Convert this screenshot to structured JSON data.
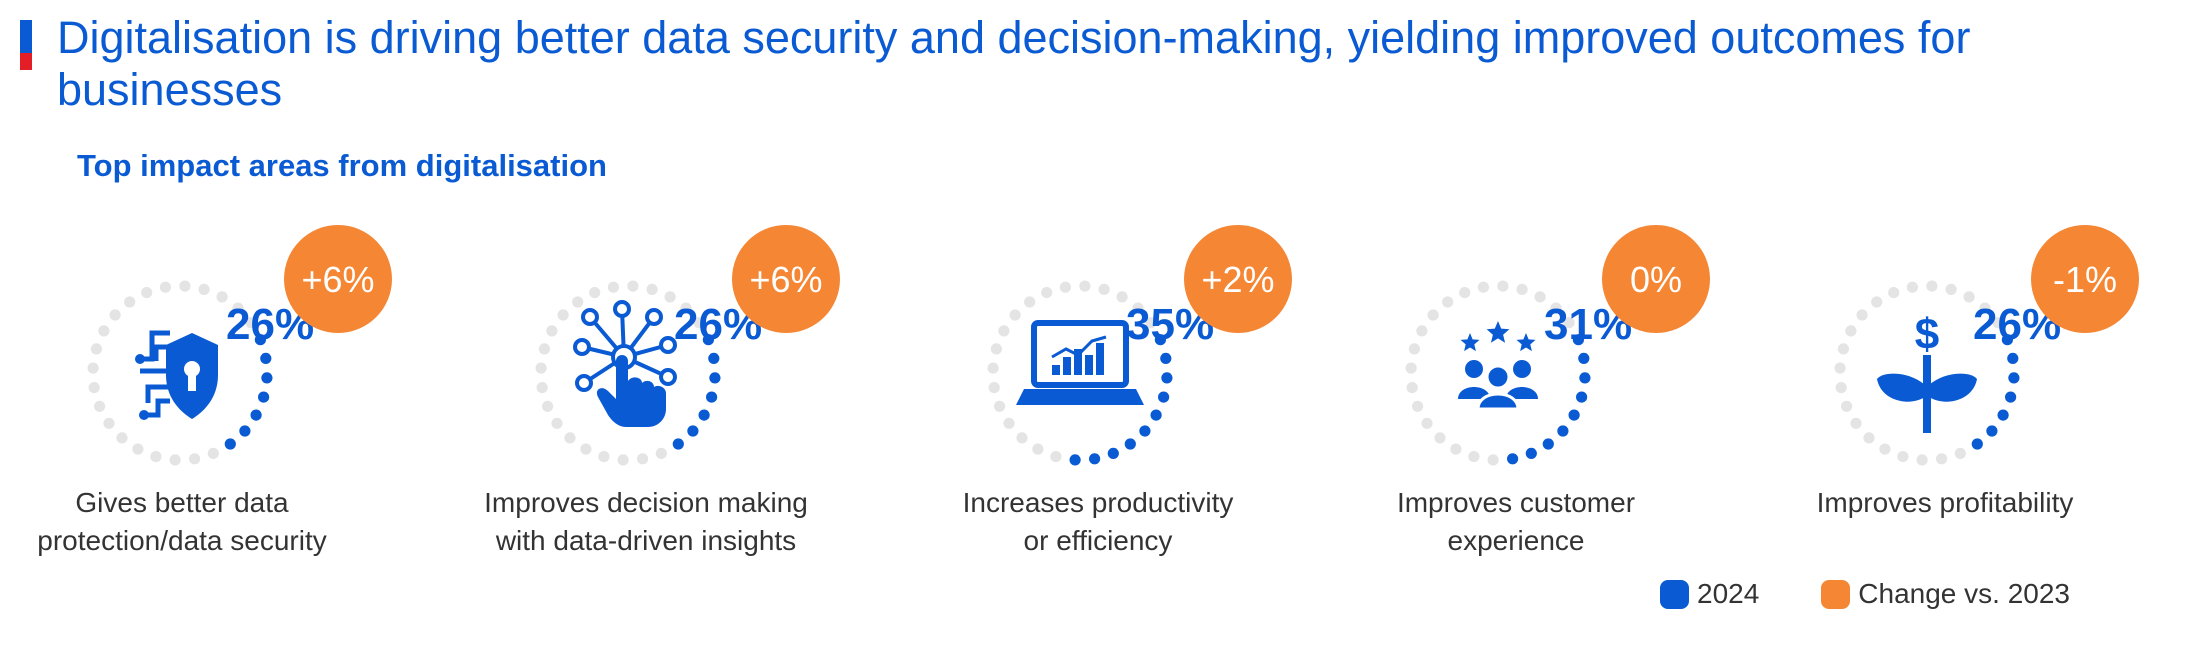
{
  "header": {
    "title": "Digitalisation is driving better data security and decision-making, yielding improved outcomes for businesses",
    "subtitle": "Top impact areas from digitalisation"
  },
  "colors": {
    "primary_blue": "#0a5bd3",
    "accent_orange": "#f58634",
    "accent_red": "#e41e26",
    "ring_gray": "#e4e4e4",
    "label_text": "#333333"
  },
  "chart_data": {
    "type": "radial-progress",
    "categories": [
      "Gives better data protection/data security",
      "Improves decision making with data-driven insights",
      "Increases productivity or efficiency",
      "Improves customer experience",
      "Improves profitability"
    ],
    "series": [
      {
        "name": "2024",
        "values": [
          26,
          26,
          35,
          31,
          26
        ]
      },
      {
        "name": "Change vs. 2023",
        "values": [
          6,
          6,
          2,
          0,
          -1
        ]
      }
    ],
    "items": [
      {
        "label_lines": [
          "Gives better data",
          "protection/data security"
        ],
        "value": 26,
        "value_label": "26%",
        "change": 6,
        "change_label": "+6%",
        "icon": "shield-circuit-icon"
      },
      {
        "label_lines": [
          "Improves decision making",
          "with data-driven insights"
        ],
        "value": 26,
        "value_label": "26%",
        "change": 6,
        "change_label": "+6%",
        "icon": "hand-network-icon"
      },
      {
        "label_lines": [
          "Increases productivity",
          "or efficiency"
        ],
        "value": 35,
        "value_label": "35%",
        "change": 2,
        "change_label": "+2%",
        "icon": "laptop-chart-icon"
      },
      {
        "label_lines": [
          "Improves customer",
          "experience"
        ],
        "value": 31,
        "value_label": "31%",
        "change": 0,
        "change_label": "0%",
        "icon": "customers-stars-icon"
      },
      {
        "label_lines": [
          "Improves profitability"
        ],
        "value": 26,
        "value_label": "26%",
        "change": -1,
        "change_label": "-1%",
        "icon": "money-plant-icon"
      }
    ],
    "legend": [
      {
        "name": "2024",
        "color": "#0a5bd3"
      },
      {
        "name": "Change vs. 2023",
        "color": "#f58634"
      }
    ],
    "legend_position": "bottom-right"
  }
}
